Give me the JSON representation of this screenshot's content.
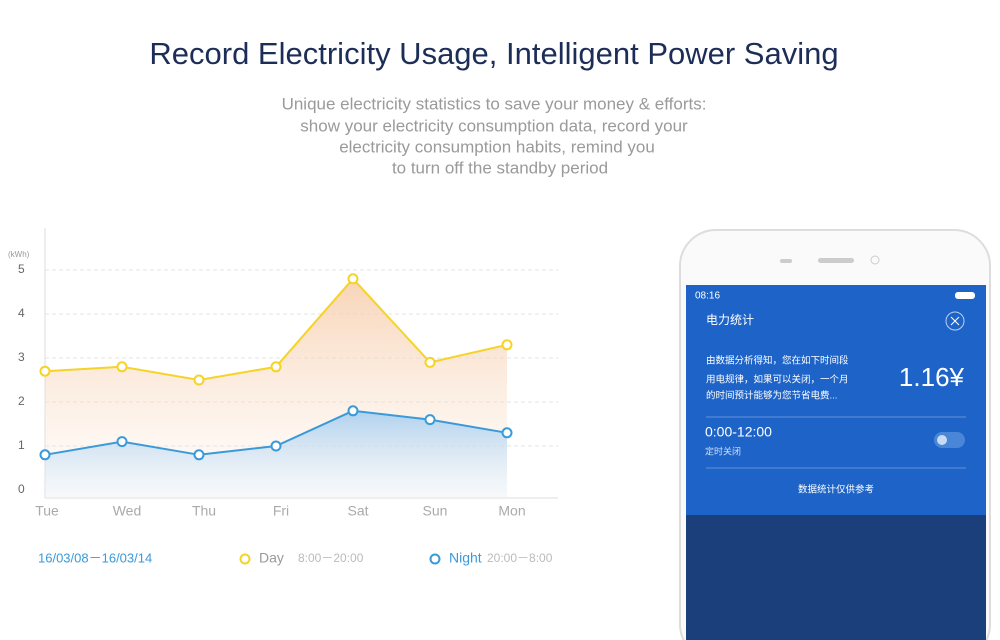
{
  "header": {
    "title": "Record Electricity Usage, Intelligent Power Saving",
    "subtitle": [
      "Unique electricity statistics to save your money & efforts:",
      "show your electricity consumption data, record your",
      "electricity consumption habits, remind you",
      "to turn off the standby period"
    ]
  },
  "chart_data": {
    "type": "line",
    "y_label": "(kWh)",
    "categories": [
      "Tue",
      "Wed",
      "Thu",
      "Fri",
      "Sat",
      "Sun",
      "Mon"
    ],
    "series": [
      {
        "name": "Day",
        "range": "8:00－20:00",
        "color": "#f5d327",
        "values": [
          2.7,
          2.8,
          2.5,
          2.8,
          4.8,
          2.9,
          3.3
        ]
      },
      {
        "name": "Night",
        "range": "20:00－8:00",
        "color": "#3a9ad9",
        "values": [
          0.8,
          1.1,
          0.8,
          1.0,
          1.8,
          1.6,
          1.3
        ]
      }
    ],
    "ylim": [
      0,
      5
    ],
    "yticks": [
      0,
      1,
      2,
      3,
      4,
      5
    ],
    "grid": true,
    "date_range": "16/03/08－16/03/14"
  },
  "phone": {
    "time": "08:16",
    "heading": "电力统计",
    "message": [
      "由数据分析得知，您在如下时间段",
      "用电规律，如果可以关闭，一个月",
      "的时间预计能够为您节省电费..."
    ],
    "amount": "1.16¥",
    "period": "0:00-12:00",
    "period_note": "定时关闭",
    "footer": "数据统计仅供参考"
  }
}
